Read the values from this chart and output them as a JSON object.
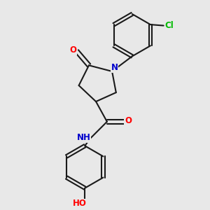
{
  "bg_color": "#e8e8e8",
  "bond_color": "#1a1a1a",
  "bond_width": 1.5,
  "atom_colors": {
    "N": "#0000cc",
    "O": "#ff0000",
    "Cl": "#00bb00",
    "H": "#666666",
    "C": "#1a1a1a"
  },
  "font_size": 8.5
}
